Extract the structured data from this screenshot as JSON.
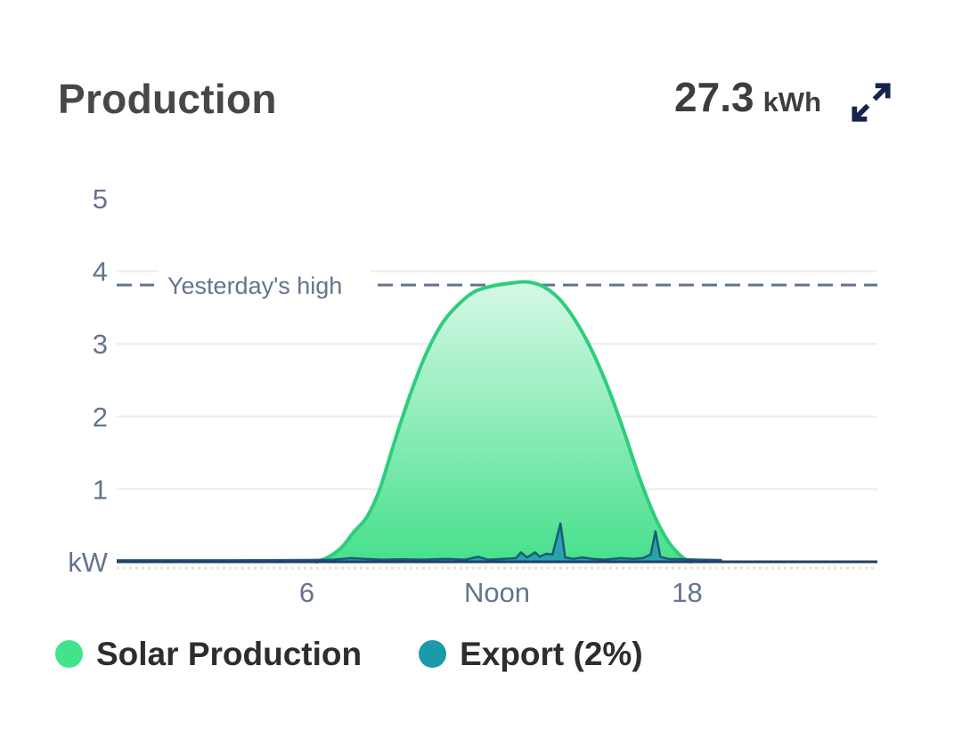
{
  "header": {
    "title": "Production",
    "total_value": "27.3",
    "total_unit": "kWh"
  },
  "icons": {
    "expand": "expand-diagonal-arrows"
  },
  "legend": {
    "items": [
      {
        "label": "Solar Production",
        "color": "#41e38c"
      },
      {
        "label": "Export (2%)",
        "color": "#1b9aaa"
      }
    ]
  },
  "colors": {
    "title_text": "#474747",
    "value_text": "#3d3d3d",
    "axis_text": "#64748e",
    "gridline": "#ececee",
    "axis_line": "#203e66",
    "annotation": "#64748e",
    "solar_stroke": "#2dcd7d",
    "solar_fill_top": "#d6f8e6",
    "solar_fill_bottom": "#47e08c",
    "export_stroke": "#1d5a74",
    "export_fill": "#2aa2ae",
    "expand_icon": "#16254e",
    "sub_axis_dotted": "#d9cfa0",
    "legend_text": "#2d2d2d"
  },
  "chart_data": {
    "type": "area",
    "title": "Production",
    "x_unit": "hour-of-day",
    "xlim": [
      0,
      24
    ],
    "ylim": [
      0,
      5.4
    ],
    "y_unit_label": "kW",
    "grid": "horizontal-only",
    "legend_position": "bottom-left",
    "y_ticks": [
      {
        "label": "5",
        "value": 5,
        "gridline": false
      },
      {
        "label": "4",
        "value": 4,
        "gridline": true
      },
      {
        "label": "3",
        "value": 3,
        "gridline": true
      },
      {
        "label": "2",
        "value": 2,
        "gridline": true
      },
      {
        "label": "1",
        "value": 1,
        "gridline": true
      }
    ],
    "x_ticks": [
      {
        "label": "6",
        "hour": 6
      },
      {
        "label": "Noon",
        "hour": 12
      },
      {
        "label": "18",
        "hour": 18
      }
    ],
    "annotation": {
      "label": "Yesterday's high",
      "value": 3.81,
      "style": "dashed"
    },
    "series": [
      {
        "name": "Solar Production",
        "unit": "kW",
        "smooth": true,
        "points": [
          [
            6.3,
            0
          ],
          [
            6.7,
            0.07
          ],
          [
            7.1,
            0.2
          ],
          [
            7.5,
            0.42
          ],
          [
            7.9,
            0.62
          ],
          [
            8.3,
            1.0
          ],
          [
            8.8,
            1.7
          ],
          [
            9.3,
            2.35
          ],
          [
            9.8,
            2.9
          ],
          [
            10.3,
            3.3
          ],
          [
            10.8,
            3.55
          ],
          [
            11.3,
            3.72
          ],
          [
            11.9,
            3.8
          ],
          [
            12.5,
            3.84
          ],
          [
            13.0,
            3.85
          ],
          [
            13.5,
            3.78
          ],
          [
            14.0,
            3.6
          ],
          [
            14.5,
            3.3
          ],
          [
            15.0,
            2.9
          ],
          [
            15.5,
            2.4
          ],
          [
            16.0,
            1.8
          ],
          [
            16.5,
            1.15
          ],
          [
            17.0,
            0.6
          ],
          [
            17.4,
            0.28
          ],
          [
            17.8,
            0.08
          ],
          [
            18.1,
            0
          ]
        ]
      },
      {
        "name": "Export",
        "unit": "kW",
        "smooth": false,
        "points": [
          [
            0,
            0.02
          ],
          [
            3,
            0.02
          ],
          [
            6,
            0.025
          ],
          [
            6.8,
            0.03
          ],
          [
            7.4,
            0.05
          ],
          [
            7.8,
            0.04
          ],
          [
            8.4,
            0.03
          ],
          [
            9,
            0.035
          ],
          [
            9.6,
            0.03
          ],
          [
            10.4,
            0.04
          ],
          [
            11.0,
            0.03
          ],
          [
            11.4,
            0.07
          ],
          [
            11.7,
            0.03
          ],
          [
            12.2,
            0.04
          ],
          [
            12.6,
            0.05
          ],
          [
            12.75,
            0.13
          ],
          [
            12.95,
            0.06
          ],
          [
            13.2,
            0.13
          ],
          [
            13.35,
            0.07
          ],
          [
            13.55,
            0.11
          ],
          [
            13.75,
            0.1
          ],
          [
            14.0,
            0.53
          ],
          [
            14.15,
            0.06
          ],
          [
            14.4,
            0.04
          ],
          [
            14.7,
            0.06
          ],
          [
            15.0,
            0.04
          ],
          [
            15.4,
            0.03
          ],
          [
            15.9,
            0.05
          ],
          [
            16.3,
            0.04
          ],
          [
            16.6,
            0.05
          ],
          [
            16.85,
            0.1
          ],
          [
            17.0,
            0.42
          ],
          [
            17.15,
            0.07
          ],
          [
            17.4,
            0.04
          ],
          [
            17.9,
            0.035
          ],
          [
            18.4,
            0.03
          ],
          [
            19.0,
            0.025
          ],
          [
            19.1,
            0.02
          ]
        ]
      }
    ]
  }
}
